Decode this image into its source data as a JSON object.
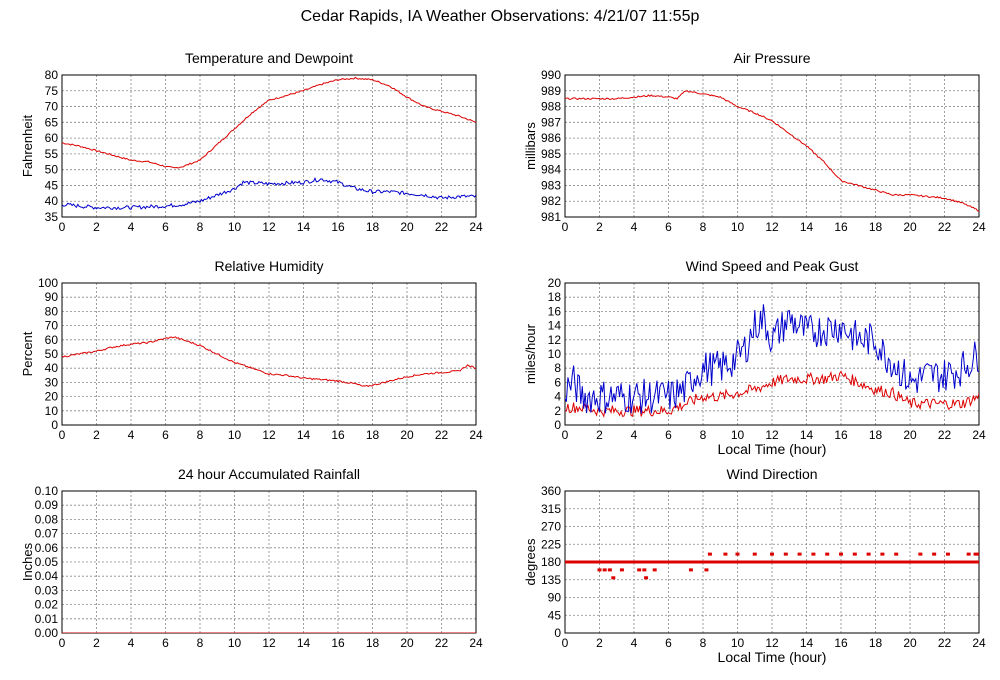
{
  "page": {
    "title": "Cedar Rapids, IA Weather Observations: 4/21/07 11:55p"
  },
  "colors": {
    "primary": "#dd0000",
    "secondary": "#0000cc",
    "grid": "#888888",
    "frame": "#000000"
  },
  "chart_data": [
    {
      "id": "temperature",
      "type": "line",
      "title": "Temperature and Dewpoint",
      "xlabel": "",
      "ylabel": "Fahrenheit",
      "xlim": [
        0,
        24
      ],
      "ylim": [
        35,
        80
      ],
      "x_ticks": [
        0,
        2,
        4,
        6,
        8,
        10,
        12,
        14,
        16,
        18,
        20,
        22,
        24
      ],
      "y_ticks": [
        35,
        40,
        45,
        50,
        55,
        60,
        65,
        70,
        75,
        80
      ],
      "grid": true,
      "noise": [
        0.25,
        0.6
      ],
      "series": [
        {
          "color": "#dd0000",
          "mode": "line",
          "x": [
            0,
            1,
            2,
            3,
            4,
            5,
            6,
            6.5,
            7,
            8,
            9,
            10,
            11,
            12,
            13,
            14,
            15,
            16,
            17,
            18,
            19,
            20,
            21,
            22,
            23,
            24
          ],
          "values": [
            58.5,
            57.5,
            56,
            54.5,
            53,
            52.5,
            51,
            50.5,
            51,
            53,
            58,
            63,
            68,
            72,
            73.5,
            75,
            77,
            78.5,
            79,
            78.5,
            76.5,
            73,
            70,
            68.5,
            67,
            65
          ]
        },
        {
          "color": "#0000cc",
          "mode": "line",
          "x": [
            0,
            2,
            4,
            6,
            7,
            8,
            9,
            10,
            10.5,
            12,
            14,
            15,
            16,
            17,
            18,
            19,
            20,
            21,
            22,
            23,
            24
          ],
          "values": [
            39,
            38,
            38,
            38.5,
            39,
            40,
            42,
            44,
            46,
            45.5,
            46,
            47,
            46,
            44,
            43,
            43,
            42.5,
            42,
            41,
            41.5,
            41.5
          ]
        }
      ]
    },
    {
      "id": "pressure",
      "type": "line",
      "title": "Air Pressure",
      "xlabel": "",
      "ylabel": "millibars",
      "xlim": [
        0,
        24
      ],
      "ylim": [
        981,
        990
      ],
      "x_ticks": [
        0,
        2,
        4,
        6,
        8,
        10,
        12,
        14,
        16,
        18,
        20,
        22,
        24
      ],
      "y_ticks": [
        981,
        982,
        983,
        984,
        985,
        986,
        987,
        988,
        989,
        990
      ],
      "grid": true,
      "noise": [
        0.05
      ],
      "series": [
        {
          "color": "#dd0000",
          "mode": "line",
          "x": [
            0,
            1,
            2,
            3,
            4,
            5,
            6,
            6.5,
            7,
            8,
            9,
            10,
            11,
            12,
            13,
            14,
            15,
            16,
            17,
            18,
            19,
            20,
            21,
            22,
            23,
            24
          ],
          "values": [
            988.5,
            988.5,
            988.5,
            988.5,
            988.6,
            988.7,
            988.6,
            988.5,
            989.0,
            988.8,
            988.6,
            988.0,
            987.6,
            987.1,
            986.3,
            985.5,
            984.5,
            983.3,
            983.0,
            982.7,
            982.4,
            982.4,
            982.3,
            982.2,
            981.9,
            981.4
          ]
        }
      ]
    },
    {
      "id": "humidity",
      "type": "line",
      "title": "Relative Humidity",
      "xlabel": "",
      "ylabel": "Percent",
      "xlim": [
        0,
        24
      ],
      "ylim": [
        0,
        100
      ],
      "x_ticks": [
        0,
        2,
        4,
        6,
        8,
        10,
        12,
        14,
        16,
        18,
        20,
        22,
        24
      ],
      "y_ticks": [
        0,
        10,
        20,
        30,
        40,
        50,
        60,
        70,
        80,
        90,
        100
      ],
      "grid": true,
      "noise": [
        0.6
      ],
      "series": [
        {
          "color": "#dd0000",
          "mode": "line",
          "x": [
            0,
            2,
            3,
            4,
            5,
            6,
            6.5,
            7,
            8,
            9,
            10,
            11,
            12,
            13,
            14,
            15,
            16,
            17,
            17.5,
            18,
            19,
            20,
            21,
            22,
            23,
            23.5,
            24
          ],
          "values": [
            48,
            52,
            55,
            57,
            58,
            61,
            62,
            60,
            56,
            50,
            44,
            40,
            36,
            35,
            33,
            32,
            31,
            29,
            27,
            28,
            31,
            34,
            36,
            37,
            38,
            42,
            40
          ]
        }
      ]
    },
    {
      "id": "wind",
      "type": "line",
      "title": "Wind Speed and Peak Gust",
      "xlabel": "Local Time (hour)",
      "ylabel": "miles/hour",
      "xlim": [
        0,
        24
      ],
      "ylim": [
        0,
        20
      ],
      "x_ticks": [
        0,
        2,
        4,
        6,
        8,
        10,
        12,
        14,
        16,
        18,
        20,
        22,
        24
      ],
      "y_ticks": [
        0,
        2,
        4,
        6,
        8,
        10,
        12,
        14,
        16,
        18,
        20
      ],
      "grid": true,
      "noise": [
        0.8,
        2.5
      ],
      "series": [
        {
          "color": "#dd0000",
          "mode": "line",
          "x": [
            0,
            1,
            2,
            3,
            4,
            5,
            6,
            7,
            7.5,
            8,
            9,
            10,
            11,
            12,
            13,
            14,
            15,
            16,
            17,
            18,
            19,
            20,
            21,
            22,
            23,
            24
          ],
          "values": [
            2.5,
            2.5,
            2,
            2,
            2,
            2,
            2,
            3,
            3.5,
            4,
            4,
            4.5,
            5,
            6,
            6.5,
            6.5,
            6.5,
            7,
            6,
            5,
            4.5,
            3,
            3,
            3,
            3,
            4
          ]
        },
        {
          "color": "#0000cc",
          "mode": "line",
          "x": [
            0,
            0.5,
            1,
            2,
            3,
            4,
            5,
            6,
            7,
            7.5,
            8,
            9,
            10,
            10.5,
            11,
            11.5,
            12,
            13,
            14,
            15,
            16,
            17,
            18,
            18.5,
            19,
            20,
            21,
            22,
            23,
            24
          ],
          "values": [
            5,
            6,
            4,
            4,
            4,
            4,
            4,
            4,
            5,
            7,
            8,
            8,
            9.5,
            11,
            14,
            15,
            12,
            15,
            13,
            13.5,
            14,
            12,
            12,
            10,
            9,
            6,
            7,
            7,
            8,
            10
          ]
        }
      ]
    },
    {
      "id": "rainfall",
      "type": "line",
      "title": "24 hour Accumulated Rainfall",
      "xlabel": "",
      "ylabel": "Inches",
      "xlim": [
        0,
        24
      ],
      "ylim": [
        0,
        0.1
      ],
      "x_ticks": [
        0,
        2,
        4,
        6,
        8,
        10,
        12,
        14,
        16,
        18,
        20,
        22,
        24
      ],
      "y_ticks": [
        "0.00",
        "0.01",
        "0.02",
        "0.03",
        "0.04",
        "0.05",
        "0.06",
        "0.07",
        "0.08",
        "0.09",
        "0.10"
      ],
      "grid": true,
      "noise": [
        0
      ],
      "series": [
        {
          "color": "#dd0000",
          "mode": "line",
          "x": [
            0,
            24
          ],
          "values": [
            0,
            0
          ]
        }
      ]
    },
    {
      "id": "direction",
      "type": "scatter",
      "title": "Wind Direction",
      "xlabel": "Local Time (hour)",
      "ylabel": "degrees",
      "xlim": [
        0,
        24
      ],
      "ylim": [
        0,
        360
      ],
      "x_ticks": [
        0,
        2,
        4,
        6,
        8,
        10,
        12,
        14,
        16,
        18,
        20,
        22,
        24
      ],
      "y_ticks": [
        0,
        45,
        90,
        135,
        180,
        225,
        270,
        315,
        360
      ],
      "grid": true,
      "series": [
        {
          "color": "#dd0000",
          "mode": "points",
          "symbol": "dash",
          "points": [
            [
              0.0,
              180
            ],
            [
              1.7,
              180
            ],
            [
              2.0,
              160
            ],
            [
              2.0,
              180
            ],
            [
              2.3,
              160
            ],
            [
              2.6,
              160
            ],
            [
              2.7,
              180
            ],
            [
              2.8,
              140
            ],
            [
              3.3,
              160
            ],
            [
              3.6,
              180
            ],
            [
              4.0,
              180
            ],
            [
              4.3,
              160
            ],
            [
              4.6,
              160
            ],
            [
              4.7,
              140
            ],
            [
              4.9,
              180
            ],
            [
              5.2,
              160
            ],
            [
              5.5,
              180
            ],
            [
              6.0,
              180
            ],
            [
              6.3,
              180
            ],
            [
              7.0,
              180
            ],
            [
              7.3,
              160
            ],
            [
              7.8,
              180
            ],
            [
              8.2,
              160
            ],
            [
              8.4,
              200
            ],
            [
              8.6,
              180
            ],
            [
              9.0,
              180
            ],
            [
              9.3,
              200
            ],
            [
              9.6,
              180
            ],
            [
              10.0,
              200
            ],
            [
              10.5,
              180
            ],
            [
              11.0,
              200
            ],
            [
              11.5,
              180
            ],
            [
              12.0,
              200
            ],
            [
              12.4,
              180
            ],
            [
              12.8,
              200
            ],
            [
              13.2,
              180
            ],
            [
              13.6,
              200
            ],
            [
              14.0,
              180
            ],
            [
              14.4,
              200
            ],
            [
              14.8,
              180
            ],
            [
              15.2,
              200
            ],
            [
              15.6,
              180
            ],
            [
              16.0,
              200
            ],
            [
              16.4,
              180
            ],
            [
              16.8,
              200
            ],
            [
              17.2,
              180
            ],
            [
              17.6,
              200
            ],
            [
              18.0,
              180
            ],
            [
              18.4,
              200
            ],
            [
              18.8,
              180
            ],
            [
              19.2,
              200
            ],
            [
              19.6,
              180
            ],
            [
              20.2,
              180
            ],
            [
              20.6,
              200
            ],
            [
              21.0,
              180
            ],
            [
              21.4,
              200
            ],
            [
              21.8,
              180
            ],
            [
              22.2,
              200
            ],
            [
              22.6,
              180
            ],
            [
              23.0,
              180
            ],
            [
              23.4,
              200
            ],
            [
              23.8,
              200
            ],
            [
              24.0,
              200
            ]
          ]
        }
      ]
    }
  ]
}
